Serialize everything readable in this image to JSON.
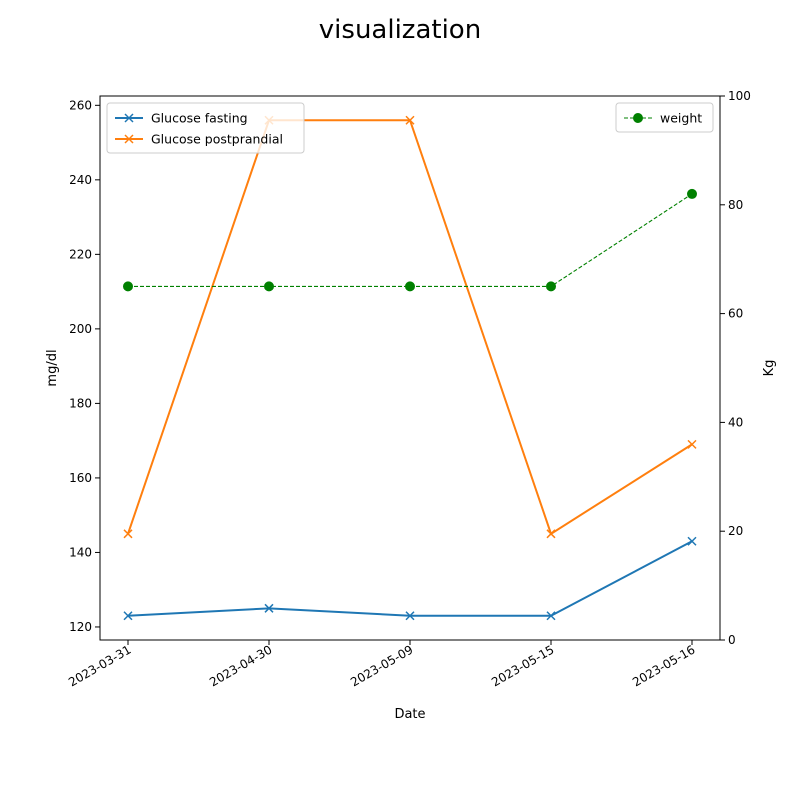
{
  "chart_data": {
    "type": "line",
    "title": "visualization",
    "xlabel": "Date",
    "ylabel_left": "mg/dl",
    "ylabel_right": "Kg",
    "x": [
      "2023-03-31",
      "2023-04-30",
      "2023-05-09",
      "2023-05-15",
      "2023-05-16"
    ],
    "y_left_ticks": [
      "120",
      "140",
      "160",
      "180",
      "200",
      "220",
      "240",
      "260"
    ],
    "y_left_range": [
      116.5,
      262.5
    ],
    "y_right_ticks": [
      "0",
      "20",
      "40",
      "60",
      "80",
      "100"
    ],
    "y_right_range": [
      0,
      100
    ],
    "left_legend_placement": "upper-left",
    "right_legend_placement": "upper-right",
    "grid": false,
    "series": [
      {
        "name": "Glucose fasting",
        "axis": "left",
        "color": "#1f77b4",
        "marker": "x",
        "linestyle": "solid",
        "values": [
          123,
          125,
          123,
          123,
          143
        ]
      },
      {
        "name": "Glucose postprandial",
        "axis": "left",
        "color": "#ff7f0e",
        "marker": "x",
        "linestyle": "solid",
        "values": [
          145,
          256,
          256,
          145,
          169
        ]
      },
      {
        "name": "weight",
        "axis": "right",
        "color": "#008000",
        "marker": "o",
        "linestyle": "dashed",
        "values": [
          65,
          65,
          65,
          65,
          82
        ]
      }
    ]
  }
}
